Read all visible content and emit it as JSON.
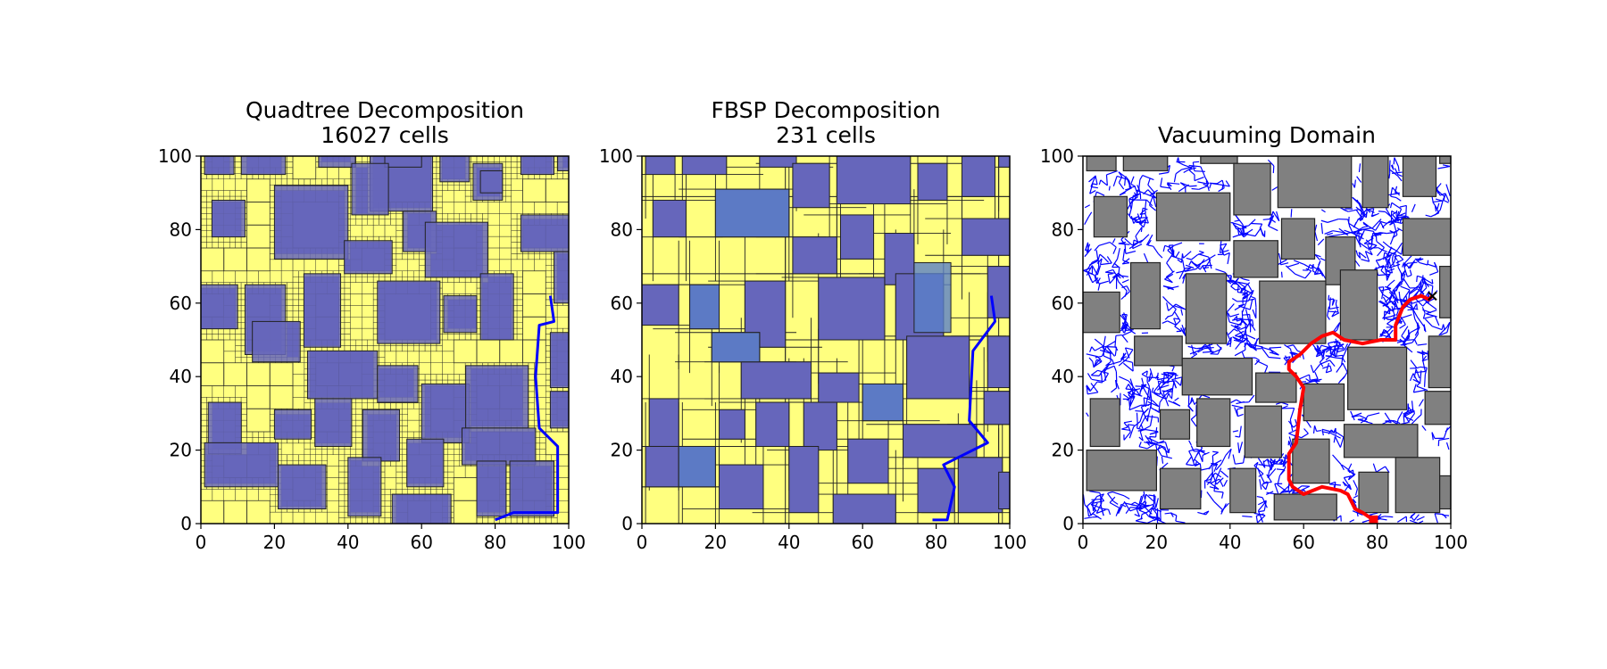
{
  "colors": {
    "free": "#ffff7f",
    "obstacle": "#6666bb",
    "gray_obstacle": "#808080",
    "tree": "#0000ff",
    "path": "#ff0000",
    "start": "#00cc00",
    "grid": "#222222"
  },
  "chart_data": [
    {
      "type": "map",
      "title_line1": "Quadtree Decomposition",
      "title_line2": "16027 cells",
      "xlim": [
        0,
        100
      ],
      "ylim": [
        0,
        100
      ],
      "xticks": [
        "0",
        "20",
        "40",
        "60",
        "80",
        "100"
      ],
      "yticks": [
        "0",
        "20",
        "40",
        "60",
        "80",
        "100"
      ],
      "obstacles": [
        [
          1,
          95,
          8,
          5
        ],
        [
          11,
          95,
          12,
          5
        ],
        [
          32,
          97,
          10,
          3
        ],
        [
          46,
          85,
          17,
          15
        ],
        [
          50,
          97,
          10,
          3
        ],
        [
          65,
          93,
          8,
          7
        ],
        [
          74,
          88,
          8,
          10
        ],
        [
          87,
          95,
          9,
          5
        ],
        [
          97,
          96,
          3,
          4
        ],
        [
          3,
          78,
          9,
          10
        ],
        [
          20,
          72,
          20,
          20
        ],
        [
          41,
          84,
          10,
          14
        ],
        [
          55,
          74,
          9,
          11
        ],
        [
          61,
          67,
          17,
          15
        ],
        [
          76,
          90,
          6,
          6
        ],
        [
          87,
          74,
          13,
          10
        ],
        [
          39,
          68,
          13,
          9
        ],
        [
          0,
          53,
          10,
          12
        ],
        [
          12,
          46,
          11,
          19
        ],
        [
          14,
          44,
          13,
          11
        ],
        [
          28,
          48,
          10,
          20
        ],
        [
          48,
          49,
          17,
          17
        ],
        [
          66,
          52,
          9,
          10
        ],
        [
          76,
          50,
          9,
          18
        ],
        [
          96,
          60,
          4,
          14
        ],
        [
          29,
          34,
          19,
          13
        ],
        [
          48,
          33,
          11,
          10
        ],
        [
          60,
          22,
          13,
          16
        ],
        [
          72,
          26,
          17,
          17
        ],
        [
          95,
          37,
          5,
          15
        ],
        [
          2,
          19,
          9,
          14
        ],
        [
          20,
          23,
          10,
          8
        ],
        [
          31,
          21,
          10,
          13
        ],
        [
          44,
          17,
          10,
          14
        ],
        [
          56,
          10,
          10,
          13
        ],
        [
          71,
          16,
          20,
          10
        ],
        [
          95,
          26,
          5,
          10
        ],
        [
          1,
          10,
          20,
          12
        ],
        [
          21,
          4,
          13,
          12
        ],
        [
          40,
          2,
          9,
          16
        ],
        [
          52,
          0,
          16,
          8
        ],
        [
          75,
          2,
          8,
          15
        ],
        [
          84,
          2,
          12,
          15
        ]
      ],
      "path": [
        [
          80,
          1
        ],
        [
          85,
          3
        ],
        [
          97,
          3
        ],
        [
          97,
          21
        ],
        [
          92,
          26
        ],
        [
          91,
          40
        ],
        [
          92,
          54
        ],
        [
          96,
          55
        ],
        [
          95,
          62
        ]
      ]
    },
    {
      "type": "map",
      "title_line1": "FBSP Decomposition",
      "title_line2": "231 cells",
      "xlim": [
        0,
        100
      ],
      "ylim": [
        0,
        100
      ],
      "xticks": [
        "0",
        "20",
        "40",
        "60",
        "80",
        "100"
      ],
      "yticks": [
        "0",
        "20",
        "40",
        "60",
        "80",
        "100"
      ],
      "obstacles": [
        [
          1,
          95,
          8,
          5
        ],
        [
          11,
          95,
          12,
          5
        ],
        [
          32,
          97,
          10,
          3
        ],
        [
          41,
          86,
          10,
          12
        ],
        [
          53,
          87,
          20,
          13
        ],
        [
          75,
          88,
          8,
          10
        ],
        [
          87,
          89,
          9,
          11
        ],
        [
          97,
          97,
          3,
          3
        ],
        [
          3,
          78,
          9,
          10
        ],
        [
          20,
          78,
          20,
          13
        ],
        [
          41,
          68,
          12,
          10
        ],
        [
          54,
          72,
          9,
          12
        ],
        [
          66,
          65,
          8,
          14
        ],
        [
          87,
          73,
          13,
          10
        ],
        [
          0,
          54,
          10,
          11
        ],
        [
          13,
          53,
          8,
          12
        ],
        [
          28,
          48,
          11,
          18
        ],
        [
          48,
          50,
          18,
          17
        ],
        [
          69,
          50,
          13,
          18
        ],
        [
          94,
          56,
          6,
          14
        ],
        [
          19,
          44,
          13,
          8
        ],
        [
          27,
          34,
          19,
          10
        ],
        [
          48,
          33,
          11,
          8
        ],
        [
          60,
          28,
          11,
          10
        ],
        [
          72,
          34,
          17,
          17
        ],
        [
          94,
          37,
          6,
          14
        ],
        [
          2,
          21,
          8,
          13
        ],
        [
          21,
          23,
          7,
          8
        ],
        [
          31,
          21,
          9,
          12
        ],
        [
          44,
          20,
          9,
          13
        ],
        [
          56,
          11,
          11,
          12
        ],
        [
          71,
          18,
          20,
          9
        ],
        [
          93,
          27,
          7,
          9
        ],
        [
          1,
          10,
          10,
          11
        ],
        [
          10,
          10,
          10,
          11
        ],
        [
          21,
          4,
          12,
          12
        ],
        [
          40,
          3,
          8,
          18
        ],
        [
          52,
          0,
          17,
          8
        ],
        [
          75,
          3,
          10,
          12
        ],
        [
          86,
          3,
          12,
          15
        ],
        [
          97,
          4,
          3,
          10
        ]
      ],
      "overlaps": [
        [
          20,
          78,
          20,
          13
        ],
        [
          13,
          53,
          8,
          12
        ],
        [
          19,
          44,
          13,
          8
        ],
        [
          60,
          28,
          11,
          10
        ],
        [
          10,
          10,
          10,
          11
        ],
        [
          74,
          52,
          10,
          19
        ]
      ],
      "path": [
        [
          79,
          1
        ],
        [
          83,
          1
        ],
        [
          85,
          10
        ],
        [
          82,
          16
        ],
        [
          94,
          22
        ],
        [
          89,
          28
        ],
        [
          90,
          47
        ],
        [
          96,
          55
        ],
        [
          95,
          62
        ]
      ]
    },
    {
      "type": "map",
      "title_line1": "Vacuuming Domain",
      "xlim": [
        0,
        100
      ],
      "ylim": [
        0,
        100
      ],
      "xticks": [
        "0",
        "20",
        "40",
        "60",
        "80",
        "100"
      ],
      "yticks": [
        "0",
        "20",
        "40",
        "60",
        "80",
        "100"
      ],
      "obstacles": [
        [
          1,
          96,
          8,
          4
        ],
        [
          11,
          96,
          12,
          4
        ],
        [
          32,
          98,
          10,
          2
        ],
        [
          41,
          84,
          10,
          14
        ],
        [
          53,
          86,
          20,
          14
        ],
        [
          76,
          86,
          7,
          14
        ],
        [
          87,
          89,
          9,
          11
        ],
        [
          97,
          98,
          3,
          2
        ],
        [
          3,
          78,
          9,
          11
        ],
        [
          20,
          77,
          20,
          13
        ],
        [
          41,
          67,
          12,
          10
        ],
        [
          54,
          72,
          9,
          11
        ],
        [
          66,
          65,
          8,
          13
        ],
        [
          87,
          73,
          13,
          10
        ],
        [
          0,
          52,
          10,
          11
        ],
        [
          13,
          53,
          8,
          18
        ],
        [
          28,
          49,
          11,
          19
        ],
        [
          48,
          49,
          18,
          17
        ],
        [
          70,
          50,
          10,
          19
        ],
        [
          97,
          56,
          3,
          14
        ],
        [
          14,
          43,
          13,
          8
        ],
        [
          27,
          35,
          19,
          10
        ],
        [
          47,
          33,
          11,
          8
        ],
        [
          60,
          28,
          11,
          10
        ],
        [
          72,
          31,
          16,
          17
        ],
        [
          94,
          37,
          6,
          14
        ],
        [
          2,
          21,
          8,
          13
        ],
        [
          21,
          23,
          8,
          8
        ],
        [
          31,
          21,
          9,
          13
        ],
        [
          44,
          18,
          10,
          14
        ],
        [
          57,
          11,
          10,
          12
        ],
        [
          71,
          18,
          20,
          9
        ],
        [
          93,
          27,
          7,
          9
        ],
        [
          1,
          9,
          19,
          11
        ],
        [
          21,
          4,
          11,
          11
        ],
        [
          40,
          3,
          7,
          12
        ],
        [
          52,
          1,
          17,
          7
        ],
        [
          75,
          3,
          8,
          11
        ],
        [
          85,
          3,
          12,
          15
        ],
        [
          97,
          4,
          3,
          9
        ]
      ],
      "path": [
        [
          79,
          1
        ],
        [
          76,
          3
        ],
        [
          74,
          4
        ],
        [
          72,
          8
        ],
        [
          70,
          9
        ],
        [
          65,
          10
        ],
        [
          60,
          8
        ],
        [
          57,
          10
        ],
        [
          56,
          12
        ],
        [
          56,
          19
        ],
        [
          58,
          22
        ],
        [
          59,
          31
        ],
        [
          60,
          37
        ],
        [
          58,
          40
        ],
        [
          56,
          42
        ],
        [
          56,
          44
        ],
        [
          59,
          46
        ],
        [
          62,
          49
        ],
        [
          65,
          51
        ],
        [
          68,
          52
        ],
        [
          71,
          50
        ],
        [
          76,
          49
        ],
        [
          81,
          50
        ],
        [
          85,
          50
        ],
        [
          85,
          54
        ],
        [
          87,
          59
        ],
        [
          89,
          61
        ],
        [
          92,
          62
        ],
        [
          94,
          61
        ],
        [
          95,
          62
        ]
      ],
      "start_point": [
        95,
        62
      ],
      "goal_point": [
        79,
        1
      ]
    }
  ]
}
